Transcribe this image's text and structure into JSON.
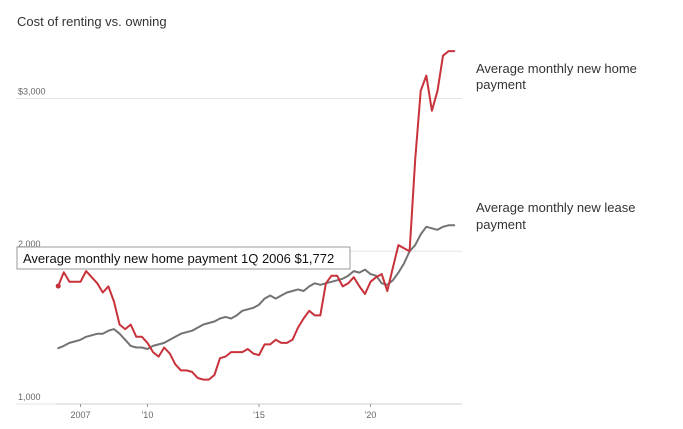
{
  "chart_data": {
    "type": "line",
    "title": "Cost of renting vs. owning",
    "y_ticks": [
      {
        "value": 3000,
        "label": "$3,000"
      },
      {
        "value": 2000,
        "label": "2,000"
      },
      {
        "value": 1000,
        "label": "1,000"
      }
    ],
    "x_ticks": [
      {
        "value": 2007.0,
        "label": "2007"
      },
      {
        "value": 2010.0,
        "label": "'10"
      },
      {
        "value": 2015.0,
        "label": "'15"
      },
      {
        "value": 2020.0,
        "label": "'20"
      }
    ],
    "ylim": [
      1000,
      3350
    ],
    "xlim": [
      2005.9,
      2024.1
    ],
    "x": [
      2006.0,
      2006.25,
      2006.5,
      2006.75,
      2007.0,
      2007.25,
      2007.5,
      2007.75,
      2008.0,
      2008.25,
      2008.5,
      2008.75,
      2009.0,
      2009.25,
      2009.5,
      2009.75,
      2010.0,
      2010.25,
      2010.5,
      2010.75,
      2011.0,
      2011.25,
      2011.5,
      2011.75,
      2012.0,
      2012.25,
      2012.5,
      2012.75,
      2013.0,
      2013.25,
      2013.5,
      2013.75,
      2014.0,
      2014.25,
      2014.5,
      2014.75,
      2015.0,
      2015.25,
      2015.5,
      2015.75,
      2016.0,
      2016.25,
      2016.5,
      2016.75,
      2017.0,
      2017.25,
      2017.5,
      2017.75,
      2018.0,
      2018.25,
      2018.5,
      2018.75,
      2019.0,
      2019.25,
      2019.5,
      2019.75,
      2020.0,
      2020.25,
      2020.5,
      2020.75,
      2021.0,
      2021.25,
      2021.5,
      2021.75,
      2022.0,
      2022.25,
      2022.5,
      2022.75,
      2023.0,
      2023.25,
      2023.5,
      2023.75
    ],
    "series": [
      {
        "name": "Average monthly new home payment",
        "color": "#c8323a",
        "values": [
          1772,
          1862,
          1800,
          1800,
          1800,
          1870,
          1830,
          1790,
          1730,
          1770,
          1670,
          1520,
          1490,
          1520,
          1440,
          1440,
          1400,
          1340,
          1310,
          1370,
          1330,
          1260,
          1220,
          1220,
          1210,
          1170,
          1160,
          1160,
          1190,
          1300,
          1310,
          1340,
          1340,
          1340,
          1360,
          1330,
          1320,
          1390,
          1390,
          1420,
          1400,
          1400,
          1420,
          1500,
          1560,
          1610,
          1580,
          1580,
          1790,
          1840,
          1840,
          1770,
          1790,
          1830,
          1770,
          1720,
          1800,
          1830,
          1850,
          1740,
          1890,
          2040,
          2020,
          2000,
          2600,
          3050,
          3150,
          2920,
          3050,
          3280,
          3310,
          3310
        ]
      },
      {
        "name": "Average monthly new lease payment",
        "color": "#737373",
        "values": [
          1365,
          1380,
          1400,
          1410,
          1420,
          1440,
          1450,
          1460,
          1460,
          1480,
          1490,
          1460,
          1420,
          1380,
          1370,
          1370,
          1360,
          1380,
          1390,
          1400,
          1420,
          1440,
          1460,
          1470,
          1480,
          1500,
          1520,
          1530,
          1540,
          1560,
          1570,
          1560,
          1580,
          1610,
          1620,
          1630,
          1650,
          1690,
          1710,
          1690,
          1710,
          1730,
          1740,
          1750,
          1740,
          1770,
          1790,
          1780,
          1790,
          1800,
          1810,
          1820,
          1840,
          1870,
          1860,
          1880,
          1850,
          1840,
          1790,
          1780,
          1810,
          1860,
          1920,
          2000,
          2040,
          2110,
          2160,
          2150,
          2140,
          2160,
          2170,
          2170
        ]
      }
    ],
    "tooltip": {
      "series": "Average monthly new home payment",
      "period": "1Q 2006",
      "value_label": "$1,772",
      "text": "Average monthly new home payment 1Q 2006 $1,772"
    },
    "series_labels": [
      {
        "lines": [
          "Average monthly new home",
          "payment"
        ]
      },
      {
        "lines": [
          "Average monthly new lease",
          "payment"
        ]
      }
    ],
    "grid": true
  }
}
